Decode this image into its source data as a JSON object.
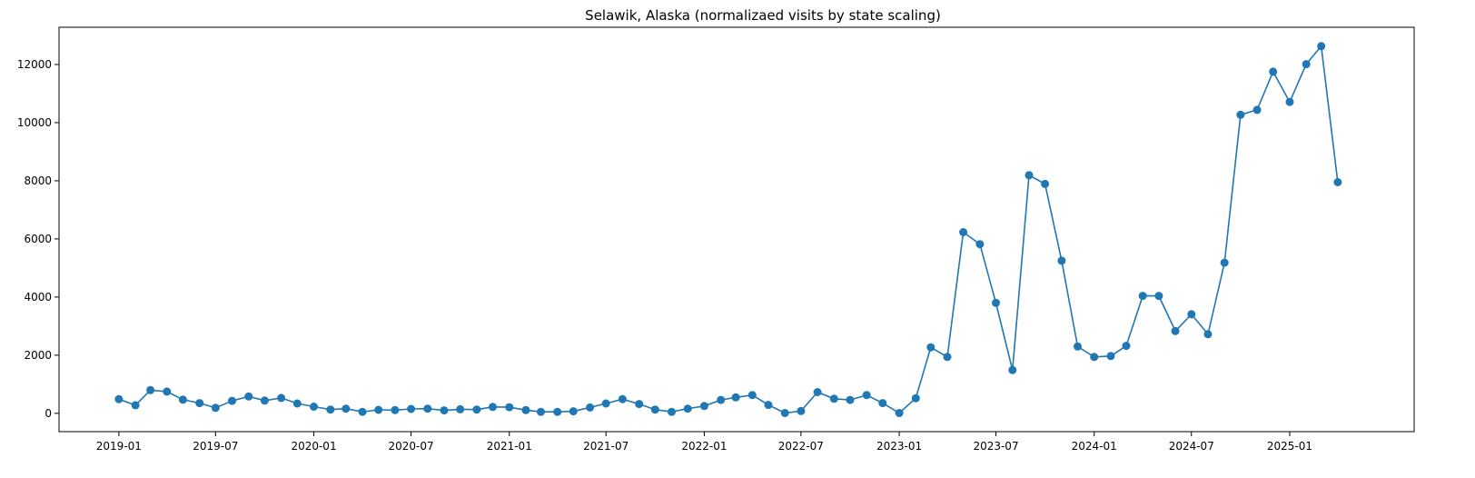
{
  "chart_data": {
    "type": "line",
    "title": "Selawik, Alaska (normalizaed visits by state scaling)",
    "xlabel": "",
    "ylabel": "",
    "x_ticks": [
      "2019-01",
      "2019-07",
      "2020-01",
      "2020-07",
      "2021-01",
      "2021-07",
      "2022-01",
      "2022-07",
      "2023-01",
      "2023-07",
      "2024-01",
      "2024-07",
      "2025-01"
    ],
    "y_ticks": [
      0,
      2000,
      4000,
      6000,
      8000,
      10000,
      12000
    ],
    "xlim": [
      "2018-09-11",
      "2025-08-22"
    ],
    "ylim": [
      -630,
      13280
    ],
    "grid": false,
    "color": "#1f77b4",
    "series": [
      {
        "x": [
          "2019-01",
          "2019-02",
          "2019-03",
          "2019-04",
          "2019-05",
          "2019-06",
          "2019-07",
          "2019-08",
          "2019-09",
          "2019-10",
          "2019-11",
          "2019-12",
          "2020-01",
          "2020-02",
          "2020-03",
          "2020-04",
          "2020-05",
          "2020-06",
          "2020-07",
          "2020-08",
          "2020-09",
          "2020-10",
          "2020-11",
          "2020-12",
          "2021-01",
          "2021-02",
          "2021-03",
          "2021-04",
          "2021-05",
          "2021-06",
          "2021-07",
          "2021-08",
          "2021-09",
          "2021-10",
          "2021-11",
          "2021-12",
          "2022-01",
          "2022-02",
          "2022-03",
          "2022-04",
          "2022-05",
          "2022-06",
          "2022-07",
          "2022-08",
          "2022-09",
          "2022-10",
          "2022-11",
          "2022-12",
          "2023-01",
          "2023-02",
          "2023-03",
          "2023-04",
          "2023-05",
          "2023-06",
          "2023-07",
          "2023-08",
          "2023-09",
          "2023-10",
          "2023-11",
          "2023-12",
          "2024-01",
          "2024-02",
          "2024-03",
          "2024-04",
          "2024-05",
          "2024-06",
          "2024-07",
          "2024-08",
          "2024-09",
          "2024-10",
          "2024-11",
          "2024-12",
          "2025-01",
          "2025-02",
          "2025-03",
          "2025-04"
        ],
        "y": [
          490,
          280,
          800,
          750,
          470,
          350,
          190,
          430,
          580,
          440,
          530,
          340,
          230,
          130,
          160,
          50,
          120,
          110,
          150,
          160,
          100,
          140,
          130,
          220,
          210,
          110,
          50,
          50,
          70,
          200,
          340,
          490,
          320,
          130,
          50,
          160,
          250,
          460,
          550,
          630,
          290,
          10,
          80,
          730,
          500,
          460,
          630,
          350,
          10,
          520,
          2270,
          1940,
          6230,
          5820,
          3800,
          1490,
          8190,
          7890,
          5250,
          2300,
          1940,
          1970,
          2320,
          4040,
          4040,
          2830,
          3410,
          2720,
          5180,
          10270,
          10440,
          11750,
          10710,
          12010,
          12630,
          7950
        ]
      }
    ]
  }
}
